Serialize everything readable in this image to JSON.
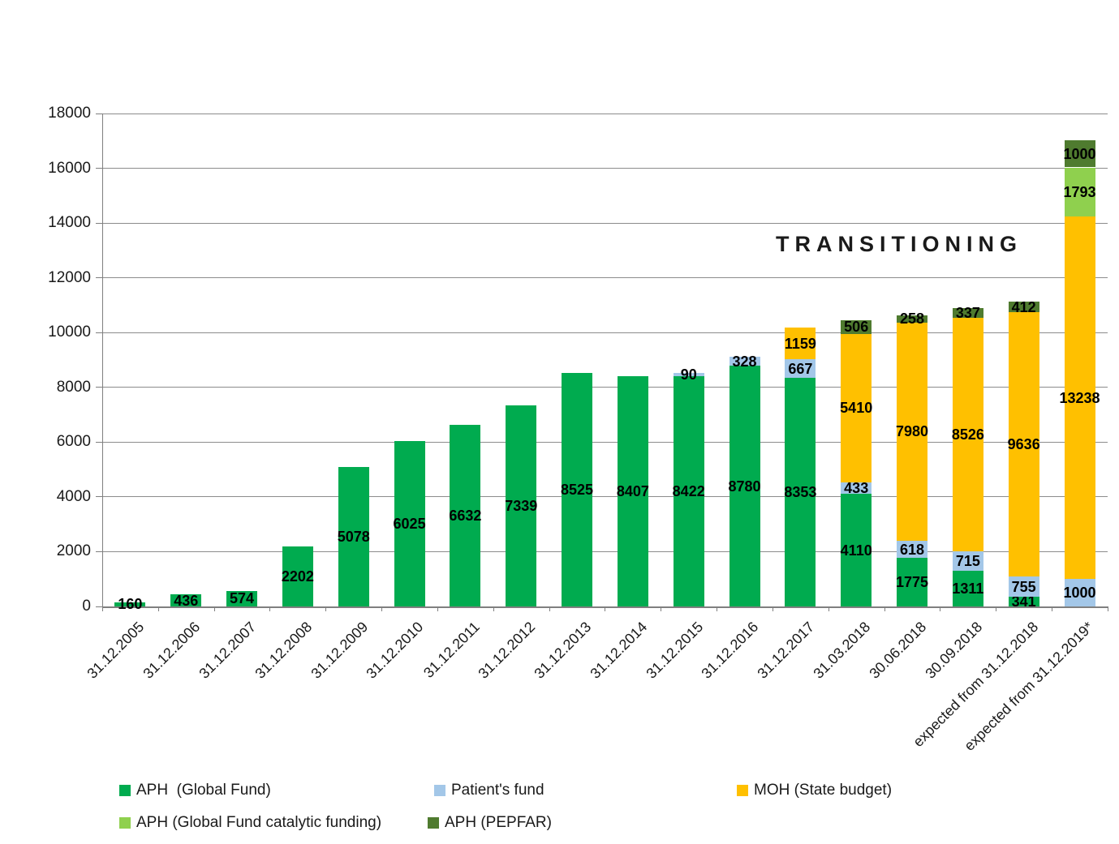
{
  "chart_data": {
    "type": "bar",
    "stacked": true,
    "annotation": "TRANSITIONING",
    "categories": [
      "31.12.2005",
      "31.12.2006",
      "31.12.2007",
      "31.12.2008",
      "31.12.2009",
      "31.12.2010",
      "31.12.2011",
      "31.12.2012",
      "31.12.2013",
      "31.12.2014",
      "31.12.2015",
      "31.12.2016",
      "31.12.2017",
      "31.03.2018",
      "30.06.2018",
      "30.09.2018",
      "expected from 31.12.2018",
      "expected from 31.12.2019*"
    ],
    "series": [
      {
        "name": "APH  (Global Fund)",
        "color": "#00AB4F",
        "values": [
          160,
          436,
          574,
          2202,
          5078,
          6025,
          6632,
          7339,
          8525,
          8407,
          8422,
          8780,
          8353,
          4110,
          1775,
          1311,
          341,
          0
        ]
      },
      {
        "name": "Patient's fund",
        "color": "#A3C7E8",
        "values": [
          0,
          0,
          0,
          0,
          0,
          0,
          0,
          0,
          0,
          0,
          90,
          328,
          667,
          433,
          618,
          715,
          755,
          1000
        ]
      },
      {
        "name": "MOH (State budget)",
        "color": "#FFC000",
        "values": [
          0,
          0,
          0,
          0,
          0,
          0,
          0,
          0,
          0,
          0,
          0,
          0,
          1159,
          5410,
          7980,
          8526,
          9636,
          13238
        ]
      },
      {
        "name": "APH (Global Fund catalytic funding)",
        "color": "#8FD04E",
        "values": [
          0,
          0,
          0,
          0,
          0,
          0,
          0,
          0,
          0,
          0,
          0,
          0,
          0,
          0,
          0,
          0,
          0,
          1793
        ]
      },
      {
        "name": "APH (PEPFAR)",
        "color": "#4F7B2F",
        "values": [
          0,
          0,
          0,
          0,
          0,
          0,
          0,
          0,
          0,
          0,
          0,
          0,
          0,
          506,
          258,
          337,
          412,
          1000
        ]
      }
    ],
    "ylim": [
      0,
      18000
    ],
    "ytick_step": 2000,
    "grid": true,
    "legend_position": "bottom",
    "data_labels": "center"
  }
}
